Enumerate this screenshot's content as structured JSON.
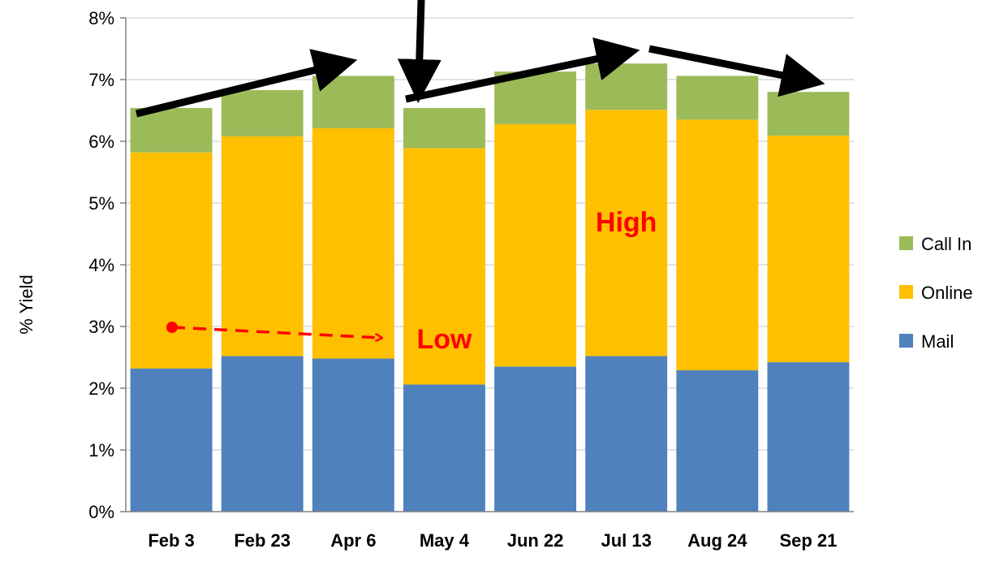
{
  "chart_data": {
    "type": "bar",
    "stacked": true,
    "categories": [
      "Feb 3",
      "Feb 23",
      "Apr 6",
      "May 4",
      "Jun 22",
      "Jul 13",
      "Aug 24",
      "Sep 21"
    ],
    "series": [
      {
        "name": "Mail",
        "color": "#4f81bd",
        "values": [
          2.32,
          2.52,
          2.48,
          2.06,
          2.35,
          2.52,
          2.29,
          2.42
        ]
      },
      {
        "name": "Online",
        "color": "#ffc000",
        "values": [
          3.5,
          3.56,
          3.73,
          3.83,
          3.93,
          3.99,
          4.06,
          3.67
        ]
      },
      {
        "name": "Call In",
        "color": "#9bbb59",
        "values": [
          0.72,
          0.75,
          0.85,
          0.65,
          0.85,
          0.75,
          0.71,
          0.71
        ]
      }
    ],
    "ylabel": "% Yield",
    "xlabel": "",
    "ylim": [
      0,
      8
    ],
    "yticks": [
      "0%",
      "1%",
      "2%",
      "3%",
      "4%",
      "5%",
      "6%",
      "7%",
      "8%"
    ],
    "grid": true,
    "legend_position": "right",
    "annotations": [
      {
        "text": "High",
        "category": "Jul 13",
        "y": 4.7
      },
      {
        "text": "Low",
        "category": "May 4",
        "y": 2.8
      }
    ]
  }
}
